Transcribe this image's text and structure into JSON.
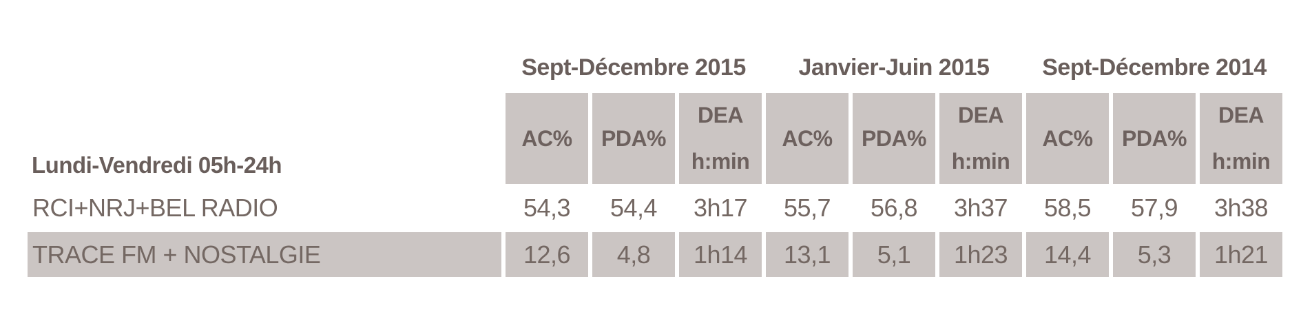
{
  "table": {
    "corner_label": "Lundi-Vendredi 05h-24h",
    "period_groups": [
      {
        "label": "Sept-Décembre 2015"
      },
      {
        "label": "Janvier-Juin 2015"
      },
      {
        "label": "Sept-Décembre 2014"
      }
    ],
    "metric_headers": {
      "ac": "AC%",
      "pda": "PDA%",
      "dea_line1": "DEA",
      "dea_line2": "h:min"
    },
    "rows": [
      {
        "label": "RCI+NRJ+BEL RADIO",
        "highlighted": false,
        "values": [
          "54,3",
          "54,4",
          "3h17",
          "55,7",
          "56,8",
          "3h37",
          "58,5",
          "57,9",
          "3h38"
        ]
      },
      {
        "label": "TRACE FM + NOSTALGIE",
        "highlighted": true,
        "values": [
          "12,6",
          "4,8",
          "1h14",
          "13,1",
          "5,1",
          "1h23",
          "14,4",
          "5,3",
          "1h21"
        ]
      }
    ]
  },
  "colors": {
    "cell_background": "#cbc5c3",
    "text": "#6d615e",
    "page_background": "#ffffff"
  }
}
